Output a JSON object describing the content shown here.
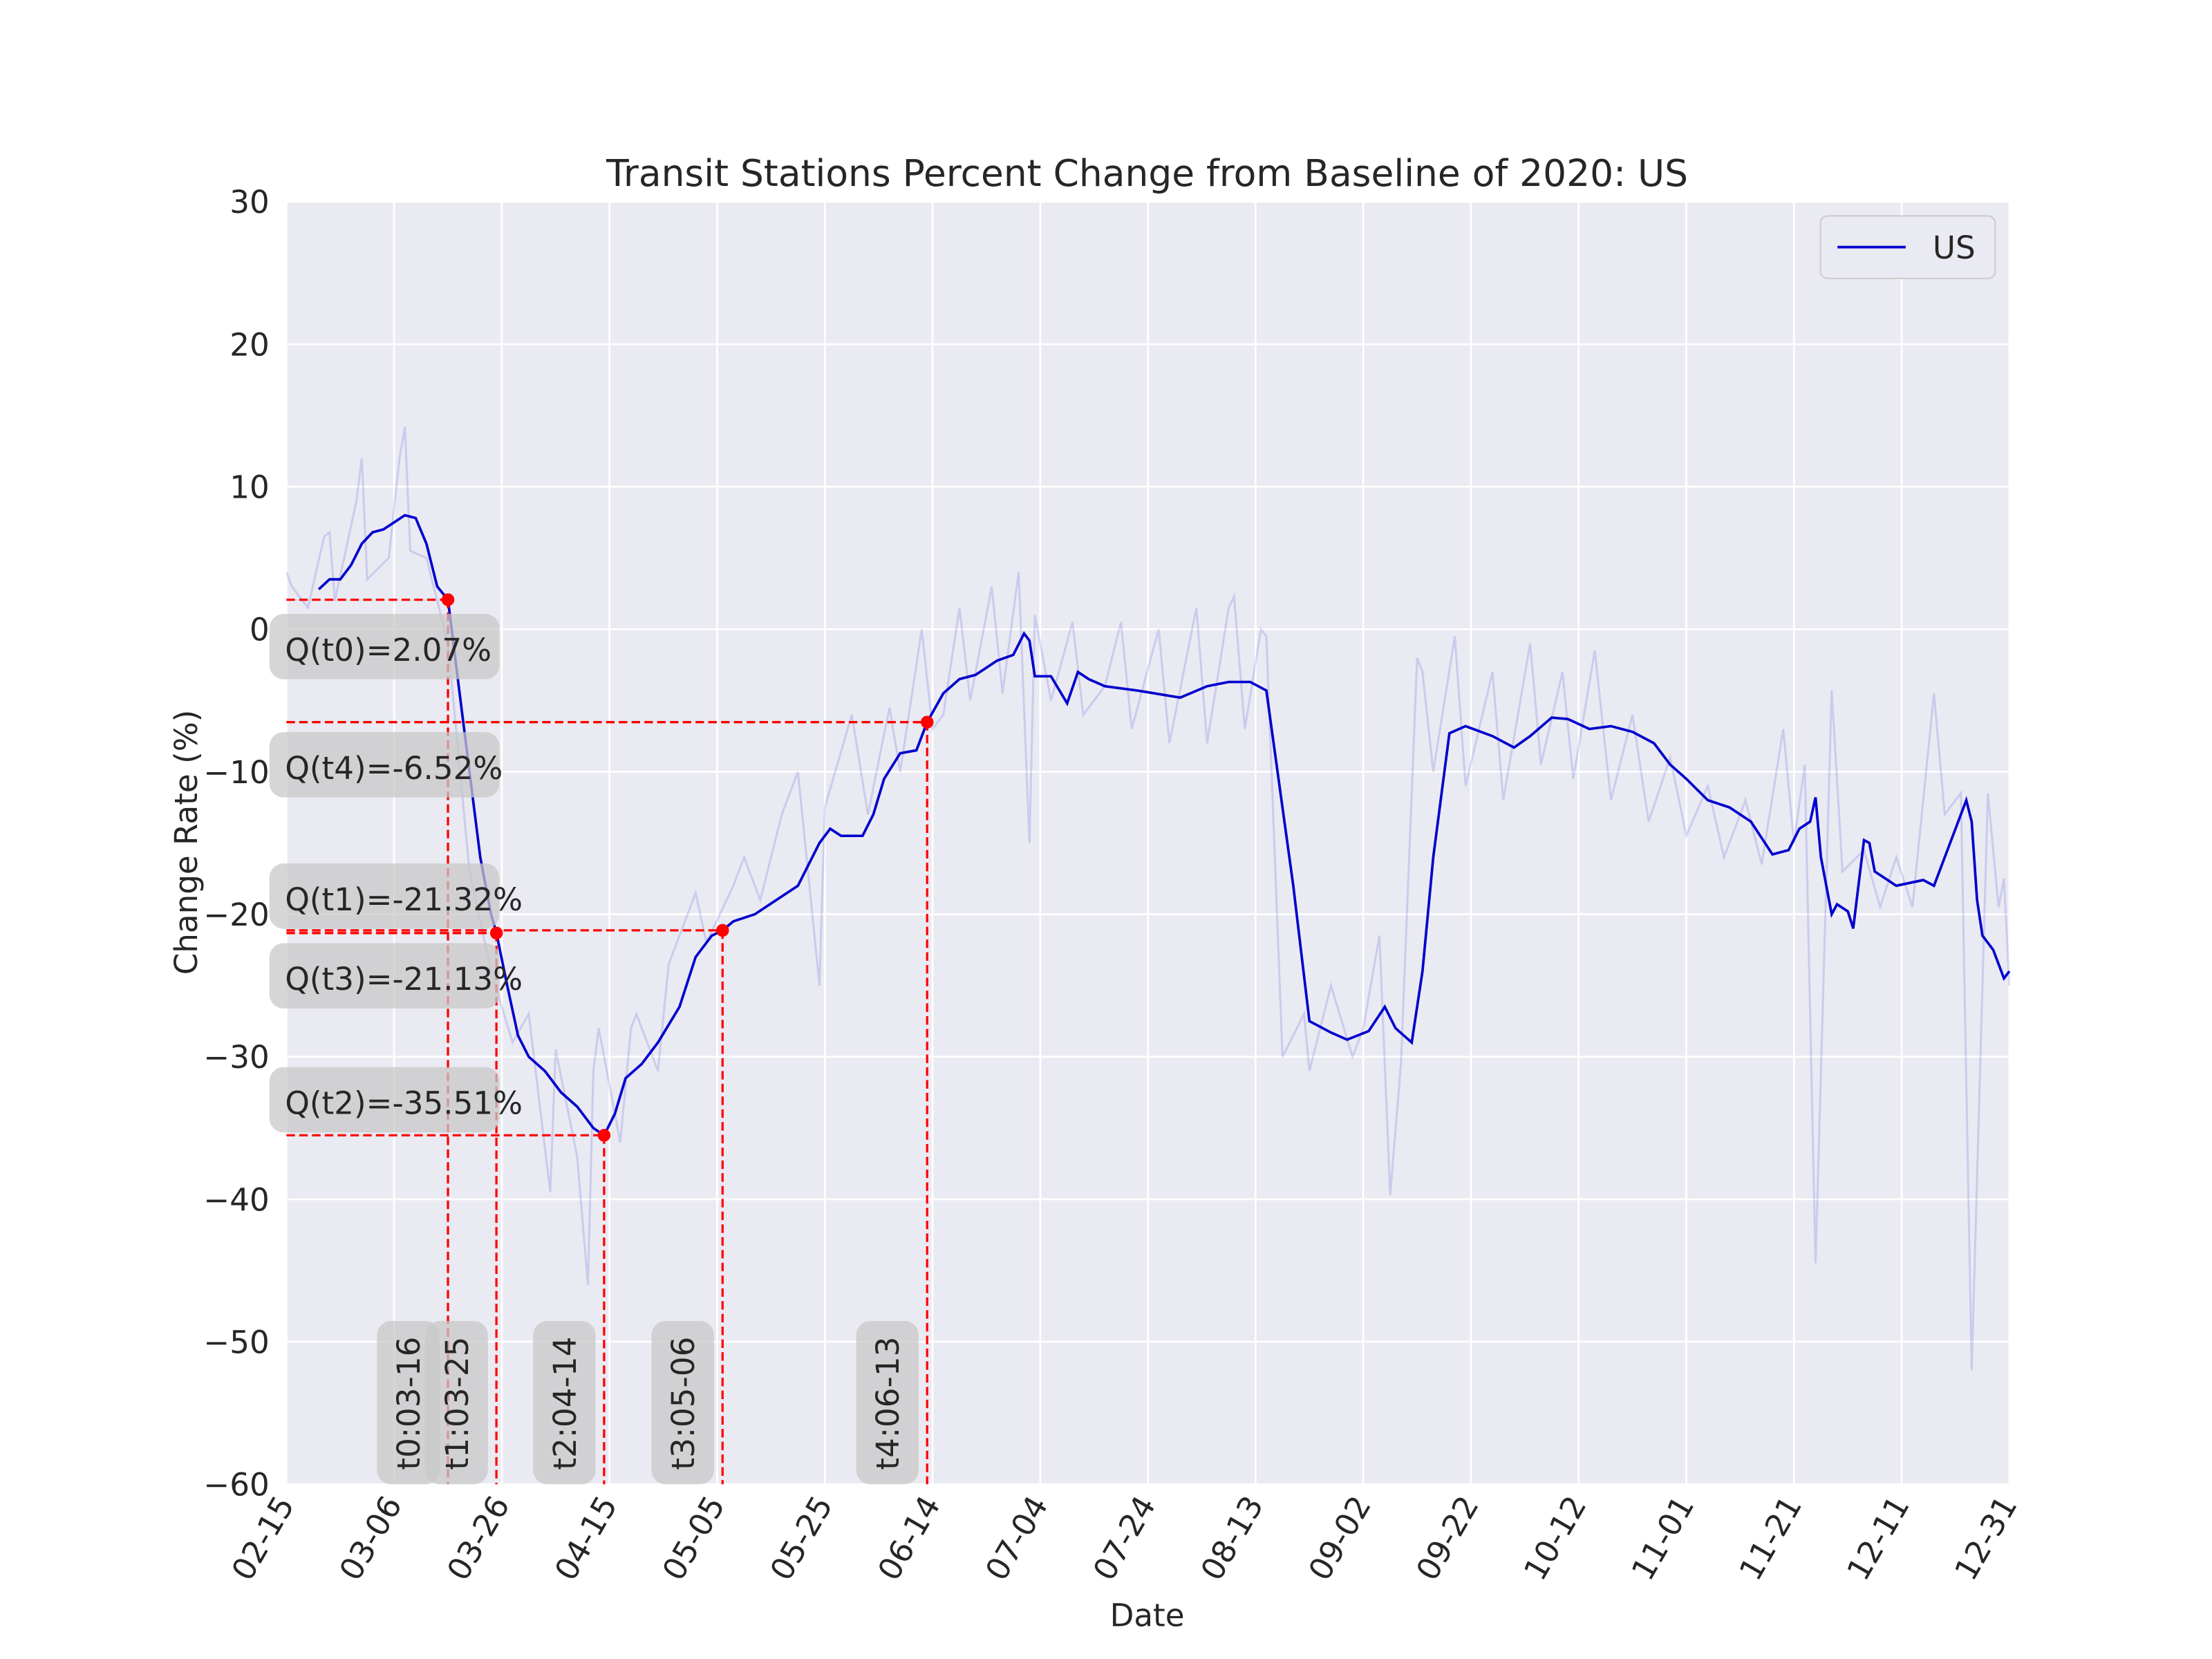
{
  "chart_data": {
    "type": "line",
    "title": "Transit Stations Percent Change from Baseline of 2020: US",
    "x_label": "Date",
    "y_label": "Change Rate (%)",
    "xlim": [
      "02-15",
      "12-31"
    ],
    "xticks": [
      "02-15",
      "03-06",
      "03-26",
      "04-15",
      "05-05",
      "05-25",
      "06-14",
      "07-04",
      "07-24",
      "08-13",
      "09-02",
      "09-22",
      "10-12",
      "11-01",
      "11-21",
      "12-11",
      "12-31"
    ],
    "ylim": [
      -60,
      30
    ],
    "yticks": [
      {
        "value": -60,
        "label": "−60"
      },
      {
        "value": -50,
        "label": "−50"
      },
      {
        "value": -40,
        "label": "−40"
      },
      {
        "value": -30,
        "label": "−30"
      },
      {
        "value": -20,
        "label": "−20"
      },
      {
        "value": -10,
        "label": "−10"
      },
      0,
      10,
      20,
      30
    ],
    "grid": true,
    "legend": "upper right",
    "x": [
      "02-21",
      "02-23",
      "02-25",
      "02-27",
      "02-29",
      "03-02",
      "03-04",
      "03-06",
      "03-08",
      "03-10",
      "03-12",
      "03-14",
      "03-16",
      "03-18",
      "03-20",
      "03-22",
      "03-24",
      "03-25",
      "03-27",
      "03-29",
      "03-31",
      "04-03",
      "04-06",
      "04-09",
      "04-12",
      "04-14",
      "04-16",
      "04-18",
      "04-21",
      "04-24",
      "04-28",
      "05-01",
      "05-04",
      "05-06",
      "05-08",
      "05-12",
      "05-16",
      "05-20",
      "05-24",
      "05-26",
      "05-28",
      "06-01",
      "06-03",
      "06-05",
      "06-08",
      "06-11",
      "06-13",
      "06-16",
      "06-19",
      "06-22",
      "06-26",
      "06-29",
      "07-01",
      "07-02",
      "07-03",
      "07-06",
      "07-09",
      "07-11",
      "07-13",
      "07-16",
      "07-22",
      "07-30",
      "08-04",
      "08-08",
      "08-12",
      "08-15",
      "08-20",
      "08-23",
      "08-27",
      "08-30",
      "09-03",
      "09-06",
      "09-08",
      "09-11",
      "09-13",
      "09-15",
      "09-18",
      "09-21",
      "09-26",
      "09-30",
      "10-03",
      "10-07",
      "10-10",
      "10-14",
      "10-18",
      "10-22",
      "10-26",
      "10-29",
      "11-01",
      "11-05",
      "11-09",
      "11-13",
      "11-17",
      "11-20",
      "11-22",
      "11-24",
      "11-25",
      "11-26",
      "11-28",
      "11-29",
      "12-01",
      "12-02",
      "12-04",
      "12-05",
      "12-06",
      "12-10",
      "12-15",
      "12-17",
      "12-20",
      "12-23",
      "12-24",
      "12-25",
      "12-26",
      "12-28",
      "12-30",
      "12-31"
    ],
    "series": [
      {
        "name": "US",
        "color": "#0000cd",
        "values": [
          2.8,
          3.5,
          3.5,
          4.5,
          6,
          6.8,
          7,
          7.5,
          8,
          7.8,
          6,
          3,
          2.07,
          -4,
          -10,
          -16,
          -20,
          -21.32,
          -25,
          -28.5,
          -30,
          -31,
          -32.5,
          -33.5,
          -35,
          -35.51,
          -34,
          -31.5,
          -30.5,
          -29,
          -26.5,
          -23,
          -21.5,
          -21.13,
          -20.5,
          -20,
          -19,
          -18,
          -15,
          -14,
          -14.5,
          -14.5,
          -13,
          -10.5,
          -8.7,
          -8.5,
          -6.52,
          -4.5,
          -3.5,
          -3.2,
          -2.2,
          -1.8,
          -0.3,
          -0.8,
          -3.3,
          -3.3,
          -5.2,
          -3,
          -3.5,
          -4,
          -4.3,
          -4.8,
          -4,
          -3.7,
          -3.7,
          -4.3,
          -18,
          -27.5,
          -28.3,
          -28.8,
          -28.2,
          -26.5,
          -28,
          -29,
          -24,
          -16,
          -7.3,
          -6.8,
          -7.5,
          -8.3,
          -7.5,
          -6.2,
          -6.3,
          -7,
          -6.8,
          -7.2,
          -8,
          -9.5,
          -10.5,
          -12,
          -12.5,
          -13.5,
          -15.8,
          -15.5,
          -14,
          -13.5,
          -11.8,
          -16,
          -20,
          -19.3,
          -19.8,
          -21,
          -14.8,
          -15,
          -17,
          -18,
          -17.6,
          -18,
          -15,
          -12,
          -13.5,
          -19,
          -21.5,
          -22.5,
          -24.5,
          -24
        ]
      }
    ],
    "raw": {
      "color": "#0000cd",
      "x": [
        "02-15",
        "02-16",
        "02-19",
        "02-22",
        "02-23",
        "02-24",
        "02-28",
        "02-29",
        "03-01",
        "03-05",
        "03-07",
        "03-08",
        "03-09",
        "03-12",
        "03-16",
        "03-20",
        "03-24",
        "03-28",
        "03-31",
        "04-04",
        "04-05",
        "04-09",
        "04-11",
        "04-12",
        "04-13",
        "04-17",
        "04-19",
        "04-20",
        "04-24",
        "04-26",
        "05-01",
        "05-03",
        "05-08",
        "05-10",
        "05-13",
        "05-17",
        "05-20",
        "05-24",
        "05-25",
        "05-30",
        "06-02",
        "06-06",
        "06-08",
        "06-12",
        "06-14",
        "06-16",
        "06-19",
        "06-21",
        "06-25",
        "06-27",
        "06-30",
        "07-02",
        "07-03",
        "07-06",
        "07-10",
        "07-12",
        "07-16",
        "07-19",
        "07-21",
        "07-26",
        "07-28",
        "08-02",
        "08-04",
        "08-08",
        "08-09",
        "08-11",
        "08-14",
        "08-15",
        "08-18",
        "08-22",
        "08-23",
        "08-27",
        "08-31",
        "09-02",
        "09-05",
        "09-07",
        "09-09",
        "09-12",
        "09-13",
        "09-15",
        "09-19",
        "09-21",
        "09-26",
        "09-28",
        "10-03",
        "10-05",
        "10-09",
        "10-11",
        "10-15",
        "10-18",
        "10-22",
        "10-25",
        "10-29",
        "11-01",
        "11-05",
        "11-08",
        "11-12",
        "11-15",
        "11-19",
        "11-21",
        "11-23",
        "11-25",
        "11-28",
        "11-30",
        "12-04",
        "12-07",
        "12-10",
        "12-13",
        "12-17",
        "12-19",
        "12-22",
        "12-24",
        "12-27",
        "12-29",
        "12-30",
        "12-31"
      ],
      "values": [
        4,
        3,
        1.5,
        6.5,
        6.8,
        2,
        9,
        12,
        3.5,
        5,
        12,
        14.2,
        5.5,
        5,
        -1,
        -17,
        -24,
        -29,
        -27,
        -39.5,
        -29.5,
        -37,
        -46,
        -31,
        -28,
        -36,
        -28,
        -27,
        -31,
        -23.5,
        -18.5,
        -22,
        -18,
        -16,
        -19,
        -13,
        -10,
        -25,
        -12.5,
        -6,
        -13,
        -5.5,
        -10,
        0,
        -7,
        -6,
        1.5,
        -5,
        3,
        -4.5,
        4,
        -15,
        1,
        -5,
        0.5,
        -6,
        -4,
        0.5,
        -7,
        0,
        -8,
        1.5,
        -8,
        1.5,
        2.3,
        -7,
        0,
        -0.5,
        -30,
        -27,
        -31,
        -25,
        -30,
        -28,
        -21.5,
        -39.7,
        -30.5,
        -2,
        -3,
        -10,
        -0.5,
        -11,
        -3,
        -12,
        -1,
        -9.5,
        -3,
        -10.5,
        -1.5,
        -12,
        -6,
        -13.5,
        -9,
        -14.5,
        -11,
        -16,
        -12,
        -16.5,
        -7,
        -15,
        -9.5,
        -44.5,
        -4.3,
        -17,
        -15.5,
        -19.5,
        -16,
        -19.5,
        -4.5,
        -13,
        -11.5,
        -52,
        -11.5,
        -19.5,
        -17.5,
        -25
      ]
    },
    "annotations": [
      {
        "label": "Q(t0)=2.07%",
        "value": 2.07,
        "date": "03-16",
        "date_label": "t0:03-16"
      },
      {
        "label": "Q(t1)=-21.32%",
        "value": -21.32,
        "date": "03-25",
        "date_label": "t1:03-25"
      },
      {
        "label": "Q(t2)=-35.51%",
        "value": -35.51,
        "date": "04-14",
        "date_label": "t2:04-14"
      },
      {
        "label": "Q(t3)=-21.13%",
        "value": -21.13,
        "date": "05-06",
        "date_label": "t3:05-06"
      },
      {
        "label": "Q(t4)=-6.52%",
        "value": -6.52,
        "date": "06-13",
        "date_label": "t4:06-13"
      }
    ]
  }
}
